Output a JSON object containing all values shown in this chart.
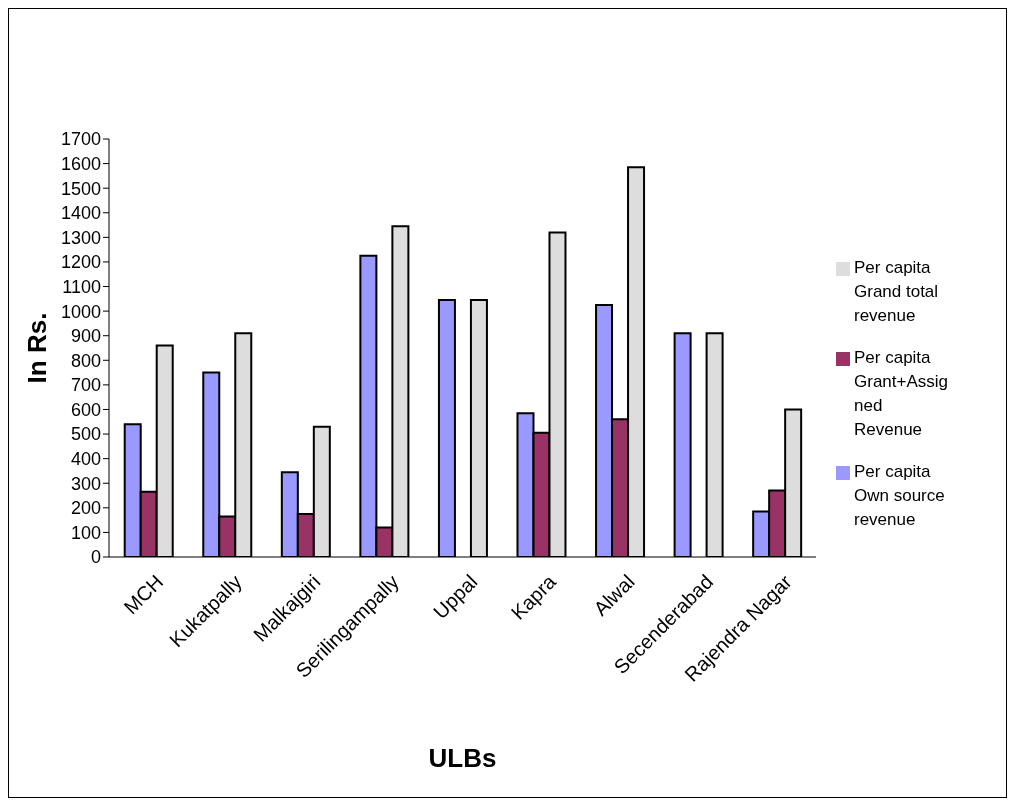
{
  "chart_data": {
    "type": "bar",
    "xlabel": "ULBs",
    "ylabel": "In Rs.",
    "categories": [
      "MCH",
      "Kukatpally",
      "Malkajgiri",
      "Serilingampally",
      "Uppal",
      "Kapra",
      "Alwal",
      "Secenderabad",
      "Rajendra Nagar"
    ],
    "series": [
      {
        "name": "Per capita Own source revenue",
        "color": "#9999ff",
        "values": [
          540,
          750,
          345,
          1225,
          1045,
          585,
          1025,
          910,
          185
        ]
      },
      {
        "name": "Per capita Grant+Assigned Revenue",
        "color": "#993366",
        "values": [
          265,
          165,
          175,
          120,
          null,
          505,
          560,
          null,
          270
        ]
      },
      {
        "name": "Per capita Grand total revenue",
        "color": "#dddddd",
        "values": [
          860,
          910,
          530,
          1345,
          1045,
          1320,
          1585,
          910,
          600
        ]
      }
    ],
    "ylim": [
      0,
      1700
    ],
    "yticks": [
      0,
      100,
      200,
      300,
      400,
      500,
      600,
      700,
      800,
      900,
      1000,
      1100,
      1200,
      1300,
      1400,
      1500,
      1600,
      1700
    ],
    "grid": false,
    "legend": "right"
  }
}
